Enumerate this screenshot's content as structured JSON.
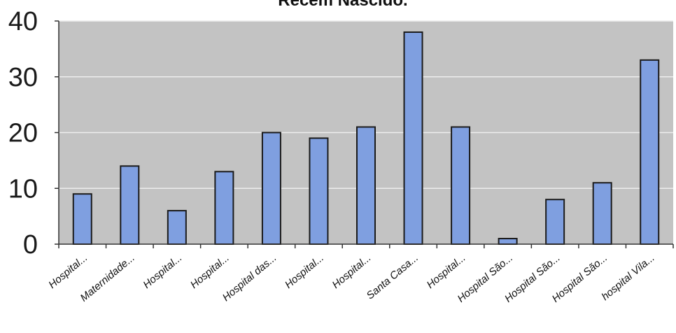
{
  "chart_data": {
    "type": "bar",
    "title": "Recém Nascido.",
    "xlabel": "",
    "ylabel": "",
    "ylim": [
      0,
      40
    ],
    "yticks": [
      0,
      10,
      20,
      30,
      40
    ],
    "grid": true,
    "categories": [
      "Hospital...",
      "Maternidade...",
      "Hospital...",
      "Hospital...",
      "Hospital das...",
      "Hospital...",
      "Hospital...",
      "Santa Casa...",
      "Hospital...",
      "Hospital São...",
      "Hospital São...",
      "Hospital São...",
      "hospital Vila..."
    ],
    "values": [
      9,
      14,
      6,
      13,
      20,
      19,
      21,
      38,
      21,
      1,
      8,
      11,
      33
    ],
    "colors": {
      "bar_fill": "#7f9fe0",
      "bar_stroke": "#1a1a1a",
      "plot_background": "#c3c3c3",
      "gridline": "#ededed",
      "axis": "#333333"
    }
  }
}
